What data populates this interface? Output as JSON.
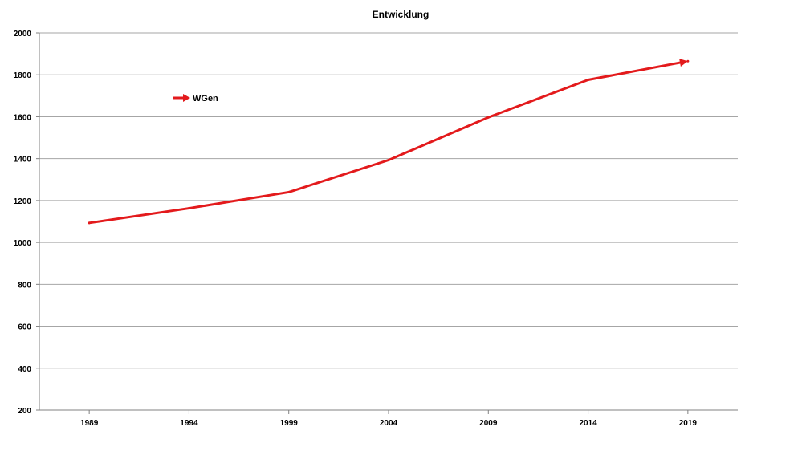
{
  "chart_data": {
    "type": "line",
    "title": "Entwicklung",
    "xlabel": "",
    "ylabel": "",
    "x": [
      "1989",
      "1994",
      "1999",
      "2004",
      "2009",
      "2014",
      "2019"
    ],
    "ylim": [
      200,
      2000
    ],
    "yticks": [
      200,
      400,
      600,
      800,
      1000,
      1200,
      1400,
      1600,
      1800,
      2000
    ],
    "grid": true,
    "legend_position": "top-left",
    "series": [
      {
        "name": "WGen",
        "color": "#e31a1c",
        "marker": "arrow",
        "values": [
          1093,
          1163,
          1240,
          1393,
          1597,
          1776,
          1865
        ]
      }
    ]
  }
}
